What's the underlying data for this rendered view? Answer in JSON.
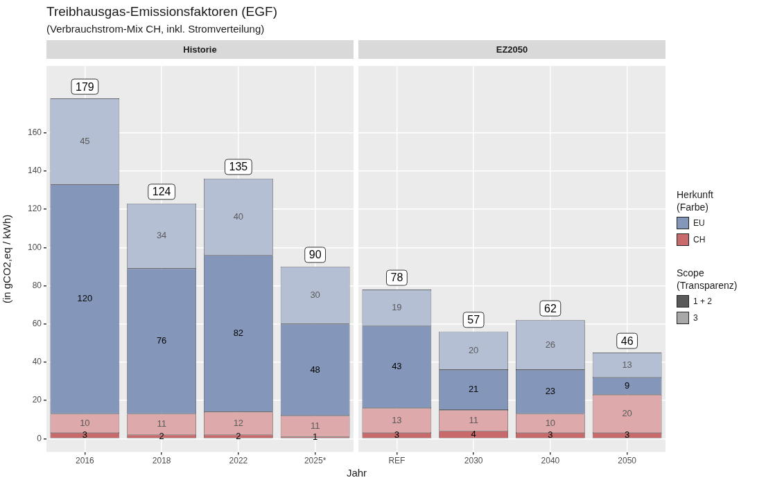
{
  "chart_data": [
    {
      "type": "bar",
      "title": "Historie",
      "xlabel": "Jahr",
      "ylabel": "(in gCO2,eq / kWh)",
      "stacked": true,
      "data_labels": true,
      "grid": true,
      "categories": [
        "2016",
        "2018",
        "2022",
        "2025*"
      ],
      "series": [
        {
          "color": "#c86a6b",
          "values": [
            3,
            2,
            2,
            1
          ]
        },
        {
          "color": "#dda9aa",
          "values": [
            10,
            11,
            12,
            11
          ]
        },
        {
          "color": "#8497bb",
          "values": [
            120,
            76,
            82,
            48
          ]
        },
        {
          "color": "#b5bfd4",
          "values": [
            45,
            34,
            40,
            30
          ]
        }
      ],
      "totals": [
        "179",
        "124",
        "135",
        "90"
      ],
      "ylim": [
        -7,
        195
      ],
      "yticks": [
        0,
        20,
        40,
        60,
        80,
        100,
        120,
        140,
        160
      ],
      "annotations": [
        "Treibhausgas-Emissionsfaktoren (EGF)",
        "(Verbrauchstrom-Mix CH, inkl. Stromverteilung)",
        "Herkunft (Farbe)",
        "EU",
        "CH",
        "Scope (Transparenz)",
        "1 + 2",
        "3"
      ]
    },
    {
      "type": "bar",
      "title": "EZ2050",
      "stacked": true,
      "data_labels": true,
      "grid": true,
      "tick_labels": "x",
      "categories": [
        "REF",
        "2030",
        "2040",
        "2050"
      ],
      "series": [
        {
          "color": "#c86a6b",
          "values": [
            3,
            4,
            3,
            3
          ]
        },
        {
          "color": "#dda9aa",
          "values": [
            13,
            11,
            10,
            20
          ]
        },
        {
          "color": "#8497bb",
          "values": [
            43,
            21,
            23,
            9
          ]
        },
        {
          "color": "#b5bfd4",
          "values": [
            19,
            20,
            26,
            13
          ]
        }
      ],
      "totals": [
        "78",
        "57",
        "62",
        "46"
      ],
      "ylim": [
        -7,
        195
      ],
      "yticks": [
        0,
        20,
        40,
        60,
        80,
        100,
        120,
        140,
        160
      ]
    }
  ]
}
